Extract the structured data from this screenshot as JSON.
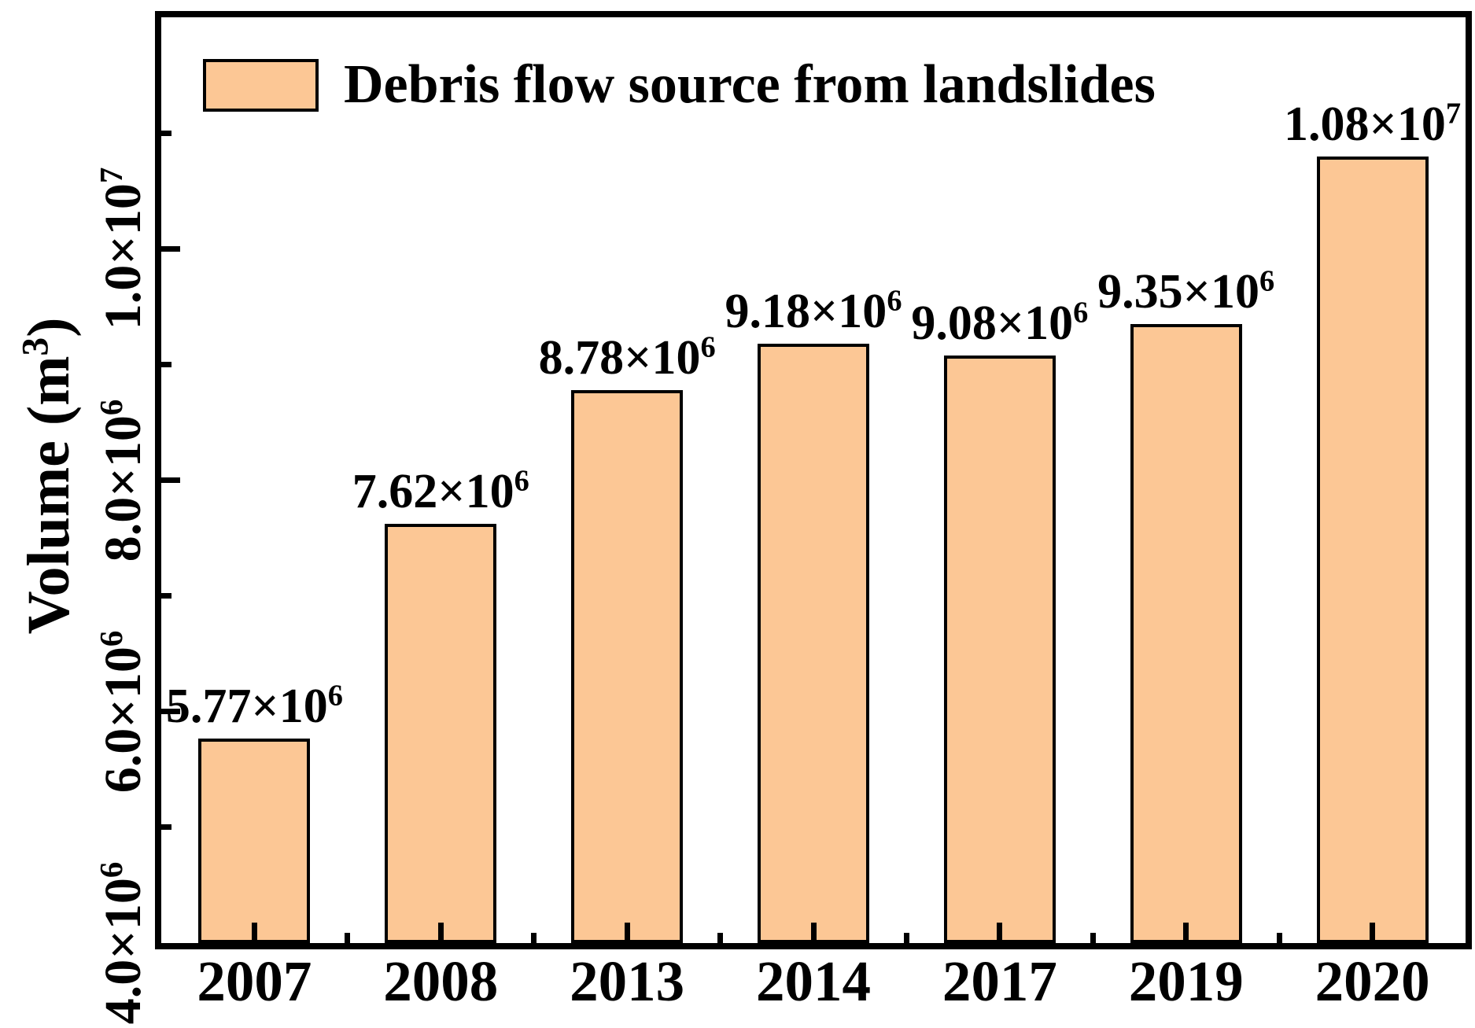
{
  "chart_data": {
    "type": "bar",
    "title": "",
    "legend_label": "Debris flow source from landslides",
    "legend_position": "top-left",
    "grid": false,
    "categories": [
      "2007",
      "2008",
      "2013",
      "2014",
      "2017",
      "2019",
      "2020"
    ],
    "values": [
      5770000,
      7620000,
      8780000,
      9180000,
      9080000,
      9350000,
      10800000
    ],
    "bar_labels": [
      {
        "base": "5.77×10",
        "exp": "6"
      },
      {
        "base": "7.62×10",
        "exp": "6"
      },
      {
        "base": "8.78×10",
        "exp": "6"
      },
      {
        "base": "9.18×10",
        "exp": "6"
      },
      {
        "base": "9.08×10",
        "exp": "6"
      },
      {
        "base": "9.35×10",
        "exp": "6"
      },
      {
        "base": "1.08×10",
        "exp": "7"
      }
    ],
    "xlabel": "",
    "ylabel": {
      "base": "Volume (m",
      "sup": "3",
      "post": ")"
    },
    "ylim": [
      4000000,
      12000000
    ],
    "yticks_major": [
      {
        "value": 4000000,
        "base": "4.0×10",
        "exp": "6"
      },
      {
        "value": 6000000,
        "base": "6.0×10",
        "exp": "6"
      },
      {
        "value": 8000000,
        "base": "8.0×10",
        "exp": "6"
      },
      {
        "value": 10000000,
        "base": "1.0×10",
        "exp": "7"
      }
    ],
    "yticks_minor": [
      5000000,
      7000000,
      9000000,
      11000000
    ],
    "colors": {
      "bar_fill": "#FCC795",
      "bar_edge": "#000000",
      "frame": "#000000",
      "text": "#000000",
      "background": "#FFFFFF"
    }
  }
}
